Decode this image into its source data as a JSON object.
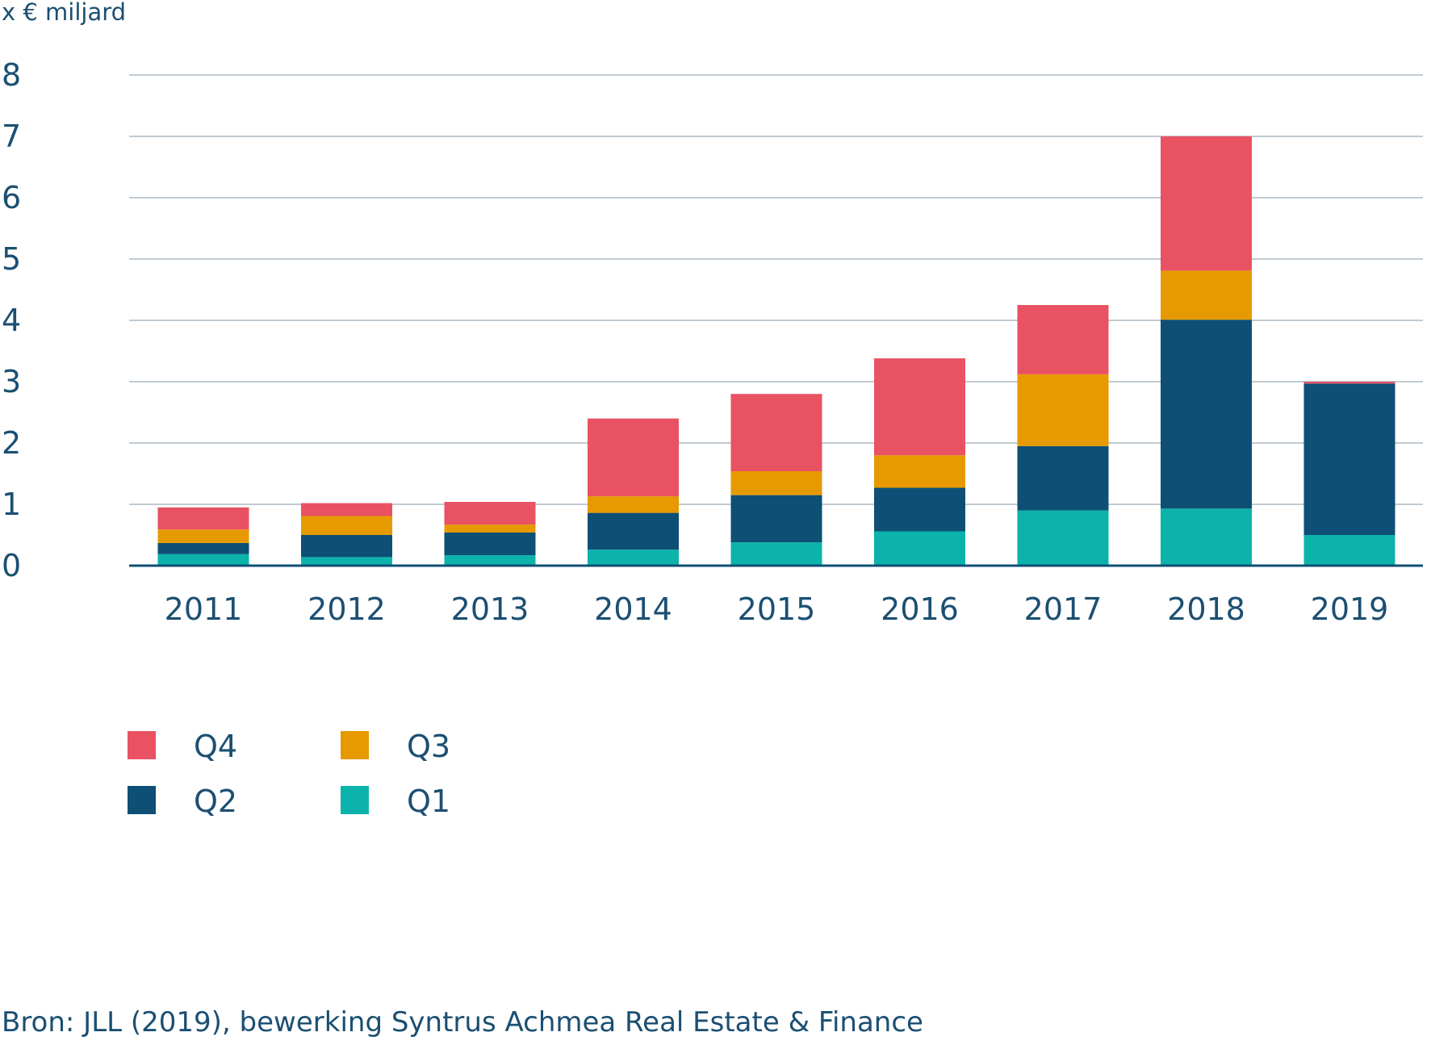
{
  "chart_data": {
    "type": "bar",
    "stacked": true,
    "unit_label": "x € miljard",
    "categories": [
      "2011",
      "2012",
      "2013",
      "2014",
      "2015",
      "2016",
      "2017",
      "2018",
      "2019"
    ],
    "ylim": [
      0,
      8
    ],
    "yticks": [
      "0",
      "1",
      "2",
      "3",
      "4",
      "5",
      "6",
      "7",
      "8"
    ],
    "grid": true,
    "series": [
      {
        "name": "Q1",
        "color": "#0cb3ab",
        "values": [
          0.19,
          0.14,
          0.17,
          0.26,
          0.38,
          0.56,
          0.9,
          0.93,
          0.5
        ]
      },
      {
        "name": "Q2",
        "color": "#0e4f75",
        "values": [
          0.18,
          0.36,
          0.37,
          0.6,
          0.77,
          0.71,
          1.05,
          3.08,
          2.47
        ]
      },
      {
        "name": "Q3",
        "color": "#e69a00",
        "values": [
          0.22,
          0.31,
          0.13,
          0.27,
          0.39,
          0.53,
          1.17,
          0.8,
          0.0
        ]
      },
      {
        "name": "Q4",
        "color": "#e95263",
        "values": [
          0.36,
          0.21,
          0.37,
          1.27,
          1.26,
          1.58,
          1.13,
          2.19,
          0.03
        ]
      }
    ],
    "legend": {
      "placement": "bottom-left",
      "order": [
        "Q4",
        "Q2",
        "Q3",
        "Q1"
      ]
    },
    "source": "Bron: JLL (2019), bewerking Syntrus Achmea Real Estate & Finance"
  }
}
